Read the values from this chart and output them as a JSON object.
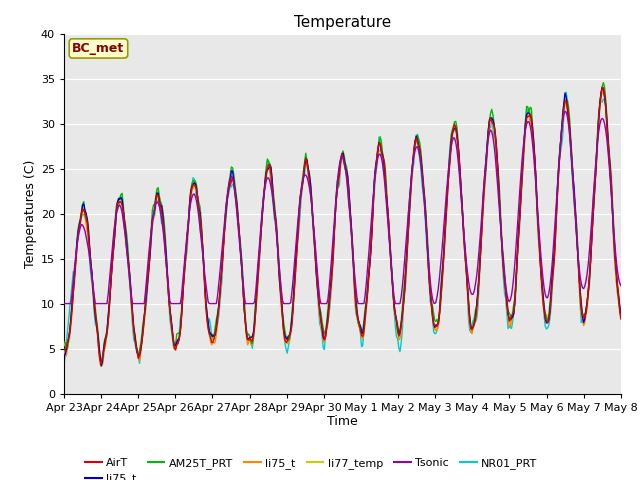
{
  "title": "Temperature",
  "xlabel": "Time",
  "ylabel": "Temperatures (C)",
  "ylim": [
    0,
    40
  ],
  "annotation": "BC_met",
  "bg_color": "#e8e8e8",
  "series_colors": {
    "AirT": "#dd0000",
    "li75_t_blue": "#0000cc",
    "AM25T_PRT": "#00bb00",
    "li75_t_orange": "#ff8800",
    "li77_temp": "#cccc00",
    "Tsonic": "#9900aa",
    "NR01_PRT": "#00cccc"
  },
  "legend_entries": [
    {
      "label": "AirT",
      "color": "#dd0000"
    },
    {
      "label": "li75_t",
      "color": "#0000cc"
    },
    {
      "label": "AM25T_PRT",
      "color": "#00bb00"
    },
    {
      "label": "li75_t",
      "color": "#ff8800"
    },
    {
      "label": "li77_temp",
      "color": "#cccc00"
    },
    {
      "label": "Tsonic",
      "color": "#9900aa"
    },
    {
      "label": "NR01_PRT",
      "color": "#00cccc"
    }
  ],
  "x_tick_labels": [
    "Apr 23",
    "Apr 24",
    "Apr 25",
    "Apr 26",
    "Apr 27",
    "Apr 28",
    "Apr 29",
    "Apr 30",
    "May 1",
    "May 2",
    "May 3",
    "May 4",
    "May 5",
    "May 6",
    "May 7",
    "May 8"
  ],
  "yticks": [
    0,
    5,
    10,
    15,
    20,
    25,
    30,
    35,
    40
  ],
  "n_points": 480
}
